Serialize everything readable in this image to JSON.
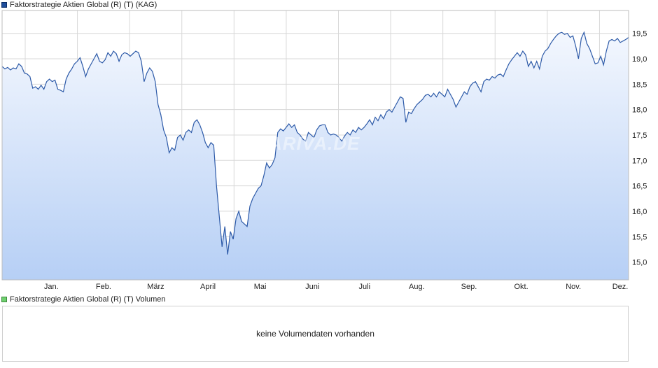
{
  "legend": {
    "price_label": "Faktorstrategie Aktien Global (R) (T) (KAG)",
    "volume_label": "Faktorstrategie Aktien Global (R) (T) Volumen"
  },
  "volume": {
    "message": "keine Volumendaten vorhanden"
  },
  "watermark": "ARIVA.DE",
  "colors": {
    "line": "#2d5aa8",
    "fill_top": "#f3f7fe",
    "fill_bottom": "#b6cff5",
    "grid": "#d8d8d8"
  },
  "chart_data": {
    "type": "area",
    "title": "",
    "xlabel": "",
    "ylabel": "",
    "ylim": [
      14.65,
      19.95
    ],
    "y_ticks": [
      "15,0",
      "15,5",
      "16,0",
      "16,5",
      "17,0",
      "17,5",
      "18,0",
      "18,5",
      "19,0",
      "19,5"
    ],
    "x_ticks": [
      "Jan.",
      "Feb.",
      "März",
      "April",
      "Mai",
      "Juni",
      "Juli",
      "Aug.",
      "Sep.",
      "Okt.",
      "Nov.",
      "Dez."
    ],
    "grid": true,
    "series": [
      {
        "values": [
          18.85,
          18.8,
          18.83,
          18.78,
          18.82,
          18.8,
          18.9,
          18.85,
          18.72,
          18.7,
          18.65,
          18.42,
          18.45,
          18.4,
          18.48,
          18.4,
          18.55,
          18.6,
          18.55,
          18.58,
          18.4,
          18.38,
          18.35,
          18.6,
          18.72,
          18.8,
          18.9,
          18.95,
          19.02,
          18.85,
          18.65,
          18.8,
          18.9,
          19.0,
          19.1,
          18.95,
          18.92,
          18.98,
          19.12,
          19.05,
          19.15,
          19.1,
          18.95,
          19.08,
          19.12,
          19.1,
          19.05,
          19.1,
          19.15,
          19.12,
          18.95,
          18.55,
          18.72,
          18.82,
          18.75,
          18.55,
          18.1,
          17.9,
          17.6,
          17.45,
          17.15,
          17.25,
          17.2,
          17.45,
          17.5,
          17.4,
          17.55,
          17.6,
          17.55,
          17.75,
          17.8,
          17.7,
          17.55,
          17.35,
          17.25,
          17.35,
          17.3,
          16.5,
          15.9,
          15.3,
          15.7,
          15.15,
          15.6,
          15.45,
          15.85,
          16.0,
          15.8,
          15.75,
          15.7,
          16.1,
          16.25,
          16.35,
          16.45,
          16.5,
          16.7,
          16.95,
          16.85,
          16.92,
          17.05,
          17.55,
          17.62,
          17.58,
          17.65,
          17.72,
          17.65,
          17.7,
          17.55,
          17.5,
          17.42,
          17.38,
          17.55,
          17.5,
          17.45,
          17.6,
          17.68,
          17.7,
          17.7,
          17.55,
          17.5,
          17.52,
          17.5,
          17.45,
          17.38,
          17.48,
          17.55,
          17.5,
          17.6,
          17.55,
          17.65,
          17.6,
          17.65,
          17.72,
          17.8,
          17.7,
          17.85,
          17.78,
          17.9,
          17.82,
          17.95,
          18.0,
          17.95,
          18.05,
          18.15,
          18.25,
          18.22,
          17.75,
          17.95,
          17.92,
          18.02,
          18.1,
          18.15,
          18.2,
          18.28,
          18.3,
          18.25,
          18.32,
          18.25,
          18.35,
          18.3,
          18.25,
          18.4,
          18.3,
          18.2,
          18.05,
          18.15,
          18.25,
          18.35,
          18.3,
          18.45,
          18.52,
          18.55,
          18.45,
          18.35,
          18.55,
          18.6,
          18.58,
          18.65,
          18.62,
          18.68,
          18.7,
          18.65,
          18.78,
          18.9,
          18.98,
          19.05,
          19.12,
          19.05,
          19.15,
          19.08,
          18.85,
          18.95,
          18.82,
          18.95,
          18.8,
          19.05,
          19.15,
          19.2,
          19.3,
          19.38,
          19.45,
          19.5,
          19.52,
          19.48,
          19.5,
          19.42,
          19.45,
          19.25,
          19.0,
          19.4,
          19.52,
          19.3,
          19.2,
          19.05,
          18.9,
          18.92,
          19.05,
          18.88,
          19.15,
          19.35,
          19.38,
          19.35,
          19.4,
          19.32,
          19.35,
          19.38,
          19.42
        ]
      }
    ]
  }
}
